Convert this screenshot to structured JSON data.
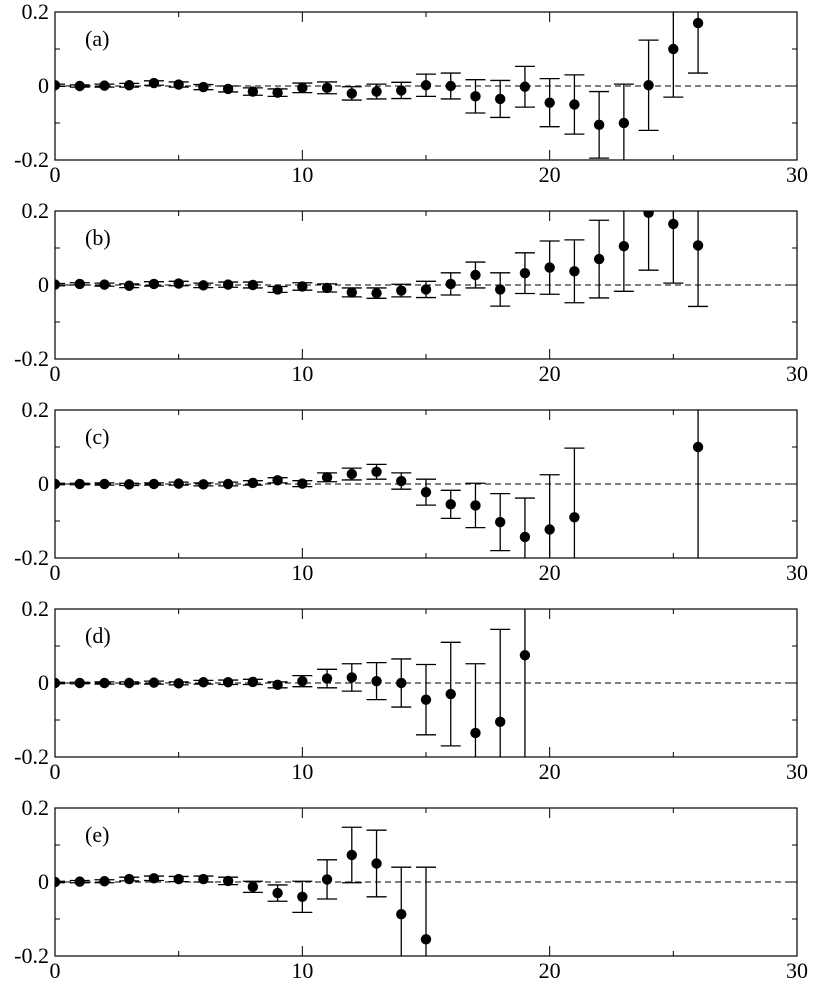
{
  "chart_data": [
    {
      "type": "scatter",
      "panel_label": "(a)",
      "xlim": [
        0,
        30
      ],
      "ylim": [
        -0.2,
        0.2
      ],
      "xticks": [
        0,
        10,
        20,
        30
      ],
      "yticks": [
        -0.2,
        0,
        0.2
      ],
      "x_tick_labels": [
        "0",
        "10",
        "20",
        "30"
      ],
      "y_tick_labels": [
        "-0.2",
        "0",
        "0.2"
      ],
      "reference_line": 0,
      "points": [
        {
          "x": 0,
          "y": 0.002,
          "err": 0.003
        },
        {
          "x": 1,
          "y": 0.0,
          "err": 0.003
        },
        {
          "x": 2,
          "y": 0.001,
          "err": 0.004
        },
        {
          "x": 3,
          "y": 0.002,
          "err": 0.005
        },
        {
          "x": 4,
          "y": 0.008,
          "err": 0.006
        },
        {
          "x": 5,
          "y": 0.004,
          "err": 0.007
        },
        {
          "x": 6,
          "y": -0.003,
          "err": 0.007
        },
        {
          "x": 7,
          "y": -0.008,
          "err": 0.008
        },
        {
          "x": 8,
          "y": -0.015,
          "err": 0.01
        },
        {
          "x": 9,
          "y": -0.018,
          "err": 0.01
        },
        {
          "x": 10,
          "y": -0.005,
          "err": 0.013
        },
        {
          "x": 11,
          "y": -0.005,
          "err": 0.016
        },
        {
          "x": 12,
          "y": -0.02,
          "err": 0.018
        },
        {
          "x": 13,
          "y": -0.015,
          "err": 0.02
        },
        {
          "x": 14,
          "y": -0.012,
          "err": 0.022
        },
        {
          "x": 15,
          "y": 0.002,
          "err": 0.03
        },
        {
          "x": 16,
          "y": 0.0,
          "err": 0.035
        },
        {
          "x": 17,
          "y": -0.028,
          "err": 0.045
        },
        {
          "x": 18,
          "y": -0.035,
          "err": 0.05
        },
        {
          "x": 19,
          "y": -0.002,
          "err": 0.055
        },
        {
          "x": 20,
          "y": -0.045,
          "err": 0.065
        },
        {
          "x": 21,
          "y": -0.05,
          "err": 0.08
        },
        {
          "x": 22,
          "y": -0.105,
          "err": 0.09
        },
        {
          "x": 23,
          "y": -0.1,
          "err": 0.105
        },
        {
          "x": 24,
          "y": 0.002,
          "err": 0.122
        },
        {
          "x": 25,
          "y": 0.1,
          "err": 0.13
        },
        {
          "x": 26,
          "y": 0.17,
          "err": 0.135
        }
      ]
    },
    {
      "type": "scatter",
      "panel_label": "(b)",
      "xlim": [
        0,
        30
      ],
      "ylim": [
        -0.2,
        0.2
      ],
      "xticks": [
        0,
        10,
        20,
        30
      ],
      "yticks": [
        -0.2,
        0,
        0.2
      ],
      "x_tick_labels": [
        "0",
        "10",
        "20",
        "30"
      ],
      "y_tick_labels": [
        "-0.2",
        "0",
        "0.2"
      ],
      "reference_line": 0,
      "points": [
        {
          "x": 0,
          "y": 0.001,
          "err": 0.003
        },
        {
          "x": 1,
          "y": 0.003,
          "err": 0.003
        },
        {
          "x": 2,
          "y": 0.001,
          "err": 0.004
        },
        {
          "x": 3,
          "y": -0.002,
          "err": 0.005
        },
        {
          "x": 4,
          "y": 0.003,
          "err": 0.006
        },
        {
          "x": 5,
          "y": 0.004,
          "err": 0.006
        },
        {
          "x": 6,
          "y": -0.001,
          "err": 0.006
        },
        {
          "x": 7,
          "y": 0.001,
          "err": 0.007
        },
        {
          "x": 8,
          "y": 0.0,
          "err": 0.008
        },
        {
          "x": 9,
          "y": -0.012,
          "err": 0.008
        },
        {
          "x": 10,
          "y": -0.004,
          "err": 0.01
        },
        {
          "x": 11,
          "y": -0.008,
          "err": 0.011
        },
        {
          "x": 12,
          "y": -0.02,
          "err": 0.012
        },
        {
          "x": 13,
          "y": -0.022,
          "err": 0.014
        },
        {
          "x": 14,
          "y": -0.015,
          "err": 0.017
        },
        {
          "x": 15,
          "y": -0.012,
          "err": 0.022
        },
        {
          "x": 16,
          "y": 0.003,
          "err": 0.03
        },
        {
          "x": 17,
          "y": 0.027,
          "err": 0.035
        },
        {
          "x": 18,
          "y": -0.012,
          "err": 0.045
        },
        {
          "x": 19,
          "y": 0.032,
          "err": 0.055
        },
        {
          "x": 20,
          "y": 0.047,
          "err": 0.072
        },
        {
          "x": 21,
          "y": 0.037,
          "err": 0.085
        },
        {
          "x": 22,
          "y": 0.07,
          "err": 0.105
        },
        {
          "x": 23,
          "y": 0.105,
          "err": 0.122
        },
        {
          "x": 24,
          "y": 0.195,
          "err": 0.155
        },
        {
          "x": 25,
          "y": 0.165,
          "err": 0.16
        },
        {
          "x": 26,
          "y": 0.107,
          "err": 0.165
        }
      ]
    },
    {
      "type": "scatter",
      "panel_label": "(c)",
      "xlim": [
        0,
        30
      ],
      "ylim": [
        -0.2,
        0.2
      ],
      "xticks": [
        0,
        10,
        20,
        30
      ],
      "yticks": [
        -0.2,
        0,
        0.2
      ],
      "x_tick_labels": [
        "0",
        "10",
        "20",
        "30"
      ],
      "y_tick_labels": [
        "-0.2",
        "0",
        "0.2"
      ],
      "reference_line": 0,
      "points": [
        {
          "x": 0,
          "y": 0.0,
          "err": 0.002
        },
        {
          "x": 1,
          "y": 0.0,
          "err": 0.002
        },
        {
          "x": 2,
          "y": 0.0,
          "err": 0.003
        },
        {
          "x": 3,
          "y": -0.001,
          "err": 0.003
        },
        {
          "x": 4,
          "y": 0.0,
          "err": 0.003
        },
        {
          "x": 5,
          "y": 0.001,
          "err": 0.004
        },
        {
          "x": 6,
          "y": -0.001,
          "err": 0.004
        },
        {
          "x": 7,
          "y": 0.0,
          "err": 0.005
        },
        {
          "x": 8,
          "y": 0.003,
          "err": 0.006
        },
        {
          "x": 9,
          "y": 0.01,
          "err": 0.007
        },
        {
          "x": 10,
          "y": 0.001,
          "err": 0.008
        },
        {
          "x": 11,
          "y": 0.018,
          "err": 0.012
        },
        {
          "x": 12,
          "y": 0.027,
          "err": 0.016
        },
        {
          "x": 13,
          "y": 0.033,
          "err": 0.02
        },
        {
          "x": 14,
          "y": 0.008,
          "err": 0.022
        },
        {
          "x": 15,
          "y": -0.022,
          "err": 0.035
        },
        {
          "x": 16,
          "y": -0.055,
          "err": 0.038
        },
        {
          "x": 17,
          "y": -0.058,
          "err": 0.06
        },
        {
          "x": 18,
          "y": -0.103,
          "err": 0.077
        },
        {
          "x": 19,
          "y": -0.143,
          "err": 0.105
        },
        {
          "x": 20,
          "y": -0.123,
          "err": 0.148
        },
        {
          "x": 21,
          "y": -0.09,
          "err": 0.187
        },
        {
          "x": 26,
          "y": 0.1,
          "err": 0.4
        }
      ]
    },
    {
      "type": "scatter",
      "panel_label": "(d)",
      "xlim": [
        0,
        30
      ],
      "ylim": [
        -0.2,
        0.2
      ],
      "xticks": [
        0,
        10,
        20,
        30
      ],
      "yticks": [
        -0.2,
        0,
        0.2
      ],
      "x_tick_labels": [
        "0",
        "10",
        "20",
        "30"
      ],
      "y_tick_labels": [
        "-0.2",
        "0",
        "0.2"
      ],
      "reference_line": 0,
      "points": [
        {
          "x": 0,
          "y": 0.0,
          "err": 0.002
        },
        {
          "x": 1,
          "y": 0.0,
          "err": 0.002
        },
        {
          "x": 2,
          "y": 0.0,
          "err": 0.003
        },
        {
          "x": 3,
          "y": 0.0,
          "err": 0.003
        },
        {
          "x": 4,
          "y": 0.001,
          "err": 0.004
        },
        {
          "x": 5,
          "y": -0.001,
          "err": 0.004
        },
        {
          "x": 6,
          "y": 0.002,
          "err": 0.005
        },
        {
          "x": 7,
          "y": 0.002,
          "err": 0.006
        },
        {
          "x": 8,
          "y": 0.003,
          "err": 0.007
        },
        {
          "x": 9,
          "y": -0.005,
          "err": 0.008
        },
        {
          "x": 10,
          "y": 0.005,
          "err": 0.015
        },
        {
          "x": 11,
          "y": 0.012,
          "err": 0.025
        },
        {
          "x": 12,
          "y": 0.015,
          "err": 0.037
        },
        {
          "x": 13,
          "y": 0.005,
          "err": 0.05
        },
        {
          "x": 14,
          "y": 0.0,
          "err": 0.065
        },
        {
          "x": 15,
          "y": -0.045,
          "err": 0.095
        },
        {
          "x": 16,
          "y": -0.03,
          "err": 0.14
        },
        {
          "x": 17,
          "y": -0.135,
          "err": 0.187
        },
        {
          "x": 18,
          "y": -0.105,
          "err": 0.25
        },
        {
          "x": 19,
          "y": 0.075,
          "err": 0.4
        }
      ]
    },
    {
      "type": "scatter",
      "panel_label": "(e)",
      "xlim": [
        0,
        30
      ],
      "ylim": [
        -0.2,
        0.2
      ],
      "xticks": [
        0,
        10,
        20,
        30
      ],
      "yticks": [
        -0.2,
        0,
        0.2
      ],
      "x_tick_labels": [
        "0",
        "10",
        "20",
        "30"
      ],
      "y_tick_labels": [
        "-0.2",
        "0",
        "0.2"
      ],
      "reference_line": 0,
      "points": [
        {
          "x": 0,
          "y": 0.0,
          "err": 0.002
        },
        {
          "x": 1,
          "y": 0.001,
          "err": 0.003
        },
        {
          "x": 2,
          "y": 0.002,
          "err": 0.004
        },
        {
          "x": 3,
          "y": 0.008,
          "err": 0.005
        },
        {
          "x": 4,
          "y": 0.01,
          "err": 0.006
        },
        {
          "x": 5,
          "y": 0.008,
          "err": 0.007
        },
        {
          "x": 6,
          "y": 0.008,
          "err": 0.008
        },
        {
          "x": 7,
          "y": 0.003,
          "err": 0.01
        },
        {
          "x": 8,
          "y": -0.013,
          "err": 0.015
        },
        {
          "x": 9,
          "y": -0.03,
          "err": 0.022
        },
        {
          "x": 10,
          "y": -0.04,
          "err": 0.042
        },
        {
          "x": 11,
          "y": 0.007,
          "err": 0.053
        },
        {
          "x": 12,
          "y": 0.073,
          "err": 0.075
        },
        {
          "x": 13,
          "y": 0.05,
          "err": 0.09
        },
        {
          "x": 14,
          "y": -0.087,
          "err": 0.127
        },
        {
          "x": 15,
          "y": -0.155,
          "err": 0.195
        }
      ]
    }
  ]
}
